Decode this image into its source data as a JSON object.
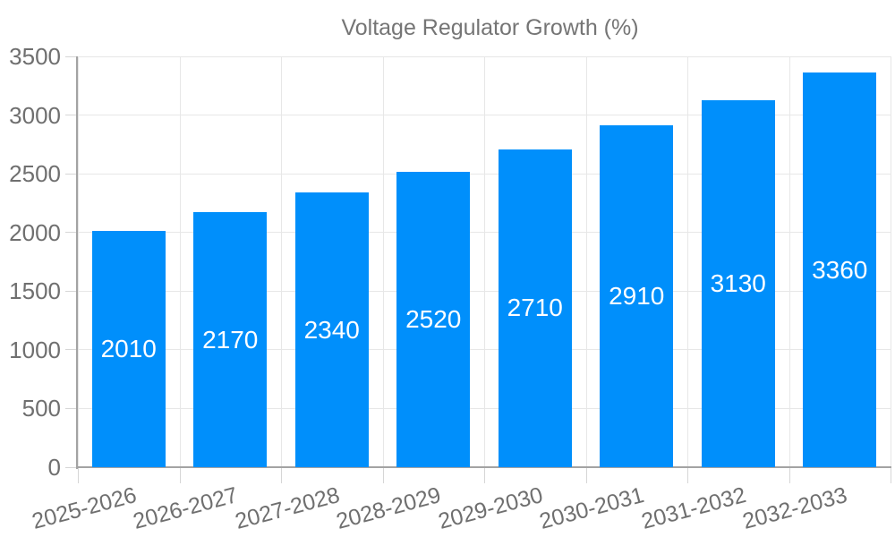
{
  "chart_data": {
    "type": "bar",
    "title": "Voltage Regulator Growth (%)",
    "legend": {
      "label": "Voltage Regulator Growth (%)",
      "position": "top"
    },
    "categories": [
      "2025-2026",
      "2026-2027",
      "2027-2028",
      "2028-2029",
      "2029-2030",
      "2030-2031",
      "2031-2032",
      "2032-2033"
    ],
    "series": [
      {
        "name": "Voltage Regulator Growth (%)",
        "values": [
          2010,
          2170,
          2340,
          2520,
          2710,
          2910,
          3130,
          3360
        ]
      }
    ],
    "xlabel": "",
    "ylabel": "",
    "ylim": [
      0,
      3500
    ],
    "ytick_step": 500,
    "y_ticks": [
      0,
      500,
      1000,
      1500,
      2000,
      2500,
      3000,
      3500
    ],
    "grid": "both",
    "data_labels": "inside-center",
    "colors": {
      "bar": "#008FFB",
      "data_label": "#FFFFFF",
      "axis_label": "#6F6F6F",
      "legend_text": "#757575",
      "gridline": "#E7E7E7",
      "axis_line": "#A3A3A3",
      "tick": "#D6D6D6"
    }
  }
}
